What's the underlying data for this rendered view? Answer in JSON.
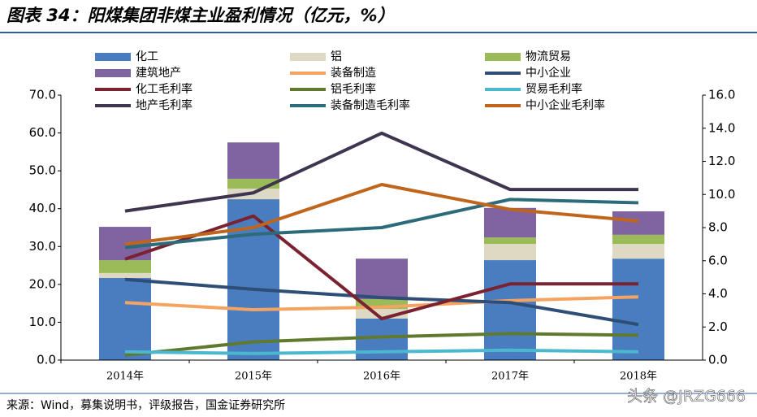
{
  "chart_data": {
    "type": "bar",
    "title": "图表 34：阳煤集团非煤主业盈利情况（亿元，%）",
    "source": "来源：Wind，募集说明书，评级报告，国金证券研究所",
    "watermark": "头条 @JRZG666",
    "categories": [
      "2014年",
      "2015年",
      "2016年",
      "2017年",
      "2018年"
    ],
    "ylim": [
      0,
      70
    ],
    "yticks": [
      {
        "value": 0,
        "label": "0.0"
      },
      {
        "value": 10,
        "label": "10.0"
      },
      {
        "value": 20,
        "label": "20.0"
      },
      {
        "value": 30,
        "label": "30.0"
      },
      {
        "value": 40,
        "label": "40.0"
      },
      {
        "value": 50,
        "label": "50.0"
      },
      {
        "value": 60,
        "label": "60.0"
      },
      {
        "value": 70,
        "label": "70.0"
      }
    ],
    "y2lim": [
      0,
      16
    ],
    "y2ticks": [
      {
        "value": 0,
        "label": "0.0"
      },
      {
        "value": 2,
        "label": "2.0"
      },
      {
        "value": 4,
        "label": "4.0"
      },
      {
        "value": 6,
        "label": "6.0"
      },
      {
        "value": 8,
        "label": "8.0"
      },
      {
        "value": 10,
        "label": "10.0"
      },
      {
        "value": 12,
        "label": "12.0"
      },
      {
        "value": 14,
        "label": "14.0"
      },
      {
        "value": 16,
        "label": "16.0"
      }
    ],
    "series": [
      {
        "name": "化工",
        "type": "bar",
        "color": "#4a7dbf",
        "values": [
          21.7,
          42.5,
          11.0,
          26.4,
          26.8
        ]
      },
      {
        "name": "铝",
        "type": "bar",
        "color": "#ddd9c3",
        "values": [
          1.3,
          2.8,
          2.5,
          4.3,
          3.9
        ]
      },
      {
        "name": "物流贸易",
        "type": "bar",
        "color": "#9bbb59",
        "values": [
          3.4,
          2.6,
          2.6,
          1.7,
          2.4
        ]
      },
      {
        "name": "建筑地产",
        "type": "bar",
        "color": "#8064a2",
        "values": [
          8.8,
          9.6,
          10.7,
          7.8,
          6.2
        ]
      },
      {
        "name": "装备制造",
        "type": "line",
        "color": "#f4a460",
        "values": [
          15.2,
          13.3,
          14.0,
          15.7,
          16.7
        ]
      },
      {
        "name": "中小企业",
        "type": "line",
        "color": "#2e4e78",
        "values": [
          21.3,
          18.7,
          16.5,
          15.2,
          9.4
        ]
      },
      {
        "name": "化工毛利率",
        "type": "line",
        "axis": "y2",
        "color": "#7b2230",
        "values": [
          6.1,
          8.7,
          2.5,
          4.6,
          4.6
        ]
      },
      {
        "name": "铝毛利率",
        "type": "line",
        "axis": "y2",
        "color": "#5f7a2e",
        "values": [
          0.3,
          1.1,
          1.4,
          1.6,
          1.5
        ]
      },
      {
        "name": "贸易毛利率",
        "type": "line",
        "axis": "y2",
        "color": "#4bb8cf",
        "values": [
          0.5,
          0.4,
          0.5,
          0.6,
          0.5
        ]
      },
      {
        "name": "地产毛利率",
        "type": "line",
        "axis": "y2",
        "color": "#3f3551",
        "values": [
          9.0,
          10.1,
          13.7,
          10.3,
          10.3
        ]
      },
      {
        "name": "装备制造毛利率",
        "type": "line",
        "axis": "y2",
        "color": "#2c6b7a",
        "values": [
          6.8,
          7.6,
          8.0,
          9.7,
          9.5
        ]
      },
      {
        "name": "中小企业毛利率",
        "type": "line",
        "axis": "y2",
        "color": "#c0651c",
        "values": [
          7.0,
          8.0,
          10.6,
          9.1,
          8.4
        ]
      }
    ]
  }
}
